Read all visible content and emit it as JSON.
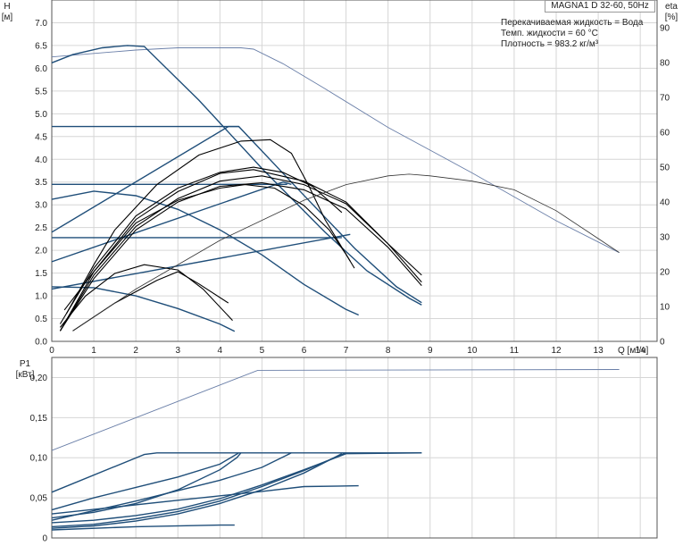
{
  "title": "MAGNA1 D 32-60, 50Hz",
  "info_lines": [
    "Перекачиваемая жидкость = Вода",
    "Темп. жидкости = 60 °C",
    "Плотность = 983.2 кг/м³"
  ],
  "colors": {
    "pump_curve": "#1f4e79",
    "efficiency_curve": "#000000",
    "outline": "#6a7fa8"
  },
  "chart_data": [
    {
      "type": "line",
      "panel": "H-Q",
      "xlabel": "Q [м³/ч]",
      "ylabel": "H\n[м]",
      "y2label": "eta\n[%]",
      "xlim": [
        0,
        14.4
      ],
      "ylim": [
        0,
        7.5
      ],
      "y2lim": [
        0,
        98
      ],
      "x_ticks": [
        "0",
        "1",
        "2",
        "3",
        "4",
        "5",
        "6",
        "7",
        "8",
        "9",
        "10",
        "11",
        "12",
        "13",
        "14"
      ],
      "y_ticks": [
        "0.0",
        "0.5",
        "1.0",
        "1.5",
        "2.0",
        "2.5",
        "3.0",
        "3.5",
        "4.0",
        "4.5",
        "5.0",
        "5.5",
        "6.0",
        "6.5",
        "7.0"
      ],
      "y2_ticks": [
        "0",
        "10",
        "20",
        "30",
        "40",
        "50",
        "60",
        "70",
        "80",
        "90"
      ],
      "series": [
        {
          "role": "head-max-twin",
          "axis": "H",
          "points": [
            [
              0,
              6.25
            ],
            [
              2,
              6.4
            ],
            [
              3,
              6.45
            ],
            [
              4.5,
              6.45
            ],
            [
              4.8,
              6.42
            ],
            [
              5.5,
              6.1
            ],
            [
              6.5,
              5.55
            ],
            [
              8,
              4.7
            ],
            [
              10,
              3.7
            ],
            [
              12,
              2.65
            ],
            [
              13.5,
              1.95
            ]
          ]
        },
        {
          "role": "head-max-single",
          "axis": "H",
          "points": [
            [
              0,
              6.12
            ],
            [
              0.5,
              6.3
            ],
            [
              1.2,
              6.45
            ],
            [
              1.8,
              6.5
            ],
            [
              2.2,
              6.48
            ],
            [
              3.5,
              5.3
            ],
            [
              5,
              3.8
            ],
            [
              6.5,
              2.4
            ],
            [
              7.5,
              1.55
            ],
            [
              8.5,
              0.95
            ],
            [
              8.8,
              0.8
            ]
          ]
        },
        {
          "role": "const-pressure-4.7",
          "axis": "H",
          "points": [
            [
              0,
              4.72
            ],
            [
              4.45,
              4.72
            ],
            [
              5.8,
              3.4
            ],
            [
              7.2,
              2.05
            ],
            [
              8.2,
              1.2
            ],
            [
              8.8,
              0.85
            ]
          ]
        },
        {
          "role": "const-pressure-3.45",
          "axis": "H",
          "points": [
            [
              0,
              3.45
            ],
            [
              5.6,
              3.45
            ]
          ]
        },
        {
          "role": "const-pressure-2.28",
          "axis": "H",
          "points": [
            [
              0,
              2.28
            ],
            [
              6.9,
              2.28
            ]
          ]
        },
        {
          "role": "prop-pressure-high",
          "axis": "H",
          "points": [
            [
              0,
              2.4
            ],
            [
              4.2,
              4.72
            ],
            [
              4.45,
              4.72
            ]
          ]
        },
        {
          "role": "prop-pressure-mid",
          "axis": "H",
          "points": [
            [
              0,
              1.75
            ],
            [
              5.5,
              3.5
            ],
            [
              5.7,
              3.45
            ]
          ]
        },
        {
          "role": "prop-pressure-low",
          "axis": "H",
          "points": [
            [
              0,
              1.15
            ],
            [
              7.1,
              2.35
            ]
          ]
        },
        {
          "role": "curve-3.1",
          "axis": "H",
          "points": [
            [
              0,
              3.12
            ],
            [
              1,
              3.3
            ],
            [
              2,
              3.2
            ],
            [
              3,
              2.9
            ],
            [
              4,
              2.45
            ],
            [
              5,
              1.9
            ],
            [
              6,
              1.25
            ],
            [
              7,
              0.7
            ],
            [
              7.3,
              0.58
            ]
          ]
        },
        {
          "role": "curve-1.2",
          "axis": "H",
          "points": [
            [
              0,
              1.2
            ],
            [
              1,
              1.18
            ],
            [
              2,
              1.0
            ],
            [
              3,
              0.72
            ],
            [
              4,
              0.38
            ],
            [
              4.35,
              0.22
            ]
          ]
        },
        {
          "role": "eta-1",
          "axis": "eta",
          "points": [
            [
              0.3,
              9
            ],
            [
              1,
              20
            ],
            [
              2,
              34
            ],
            [
              3,
              40.5
            ],
            [
              4,
              44
            ],
            [
              4.6,
              45
            ],
            [
              5.3,
              44
            ],
            [
              6,
              39
            ],
            [
              6.6,
              32
            ],
            [
              7,
              25
            ],
            [
              7.2,
              21
            ]
          ]
        },
        {
          "role": "eta-2",
          "axis": "eta",
          "points": [
            [
              0.2,
              5
            ],
            [
              1,
              21
            ],
            [
              2,
              36
            ],
            [
              3,
              44
            ],
            [
              4,
              48.5
            ],
            [
              4.8,
              50
            ],
            [
              5.5,
              48.5
            ],
            [
              6.2,
              44.5
            ],
            [
              6.9,
              37
            ]
          ]
        },
        {
          "role": "eta-3",
          "axis": "eta",
          "points": [
            [
              0.2,
              3
            ],
            [
              1,
              20
            ],
            [
              2,
              35
            ],
            [
              3,
              43
            ],
            [
              4,
              48.2
            ],
            [
              4.8,
              49.3
            ],
            [
              6,
              46
            ],
            [
              7,
              40
            ],
            [
              8,
              28
            ],
            [
              8.8,
              19
            ]
          ]
        },
        {
          "role": "eta-4",
          "axis": "eta",
          "points": [
            [
              0.2,
              3
            ],
            [
              1,
              19
            ],
            [
              2,
              33
            ],
            [
              3,
              41
            ],
            [
              4,
              46
            ],
            [
              5,
              47.5
            ],
            [
              6,
              45
            ],
            [
              7,
              39.5
            ],
            [
              8,
              28
            ],
            [
              8.8,
              17
            ]
          ]
        },
        {
          "role": "eta-5",
          "axis": "eta",
          "points": [
            [
              0.2,
              3
            ],
            [
              1,
              18
            ],
            [
              2,
              32
            ],
            [
              3,
              40
            ],
            [
              4,
              44.5
            ],
            [
              5,
              45.5
            ],
            [
              6,
              43.5
            ],
            [
              7,
              38
            ],
            [
              8,
              27
            ],
            [
              8.8,
              16
            ]
          ]
        },
        {
          "role": "eta-high",
          "axis": "eta",
          "points": [
            [
              0.35,
              8
            ],
            [
              1,
              22
            ],
            [
              1.5,
              32
            ],
            [
              2.5,
              45
            ],
            [
              3.5,
              53.5
            ],
            [
              4.5,
              57.5
            ],
            [
              5.2,
              57.9
            ],
            [
              5.7,
              54
            ],
            [
              6.1,
              45
            ],
            [
              6.5,
              35
            ],
            [
              7.1,
              23
            ]
          ]
        },
        {
          "role": "eta-small-1",
          "axis": "eta",
          "points": [
            [
              0.2,
              4
            ],
            [
              0.8,
              13
            ],
            [
              1.5,
              19.5
            ],
            [
              2.2,
              22
            ],
            [
              3,
              20.5
            ],
            [
              3.6,
              15
            ],
            [
              4.3,
              6
            ]
          ]
        },
        {
          "role": "eta-small-2",
          "axis": "eta",
          "points": [
            [
              0.5,
              3
            ],
            [
              1.5,
              11
            ],
            [
              2.5,
              17.5
            ],
            [
              3,
              20
            ],
            [
              3.5,
              16.5
            ],
            [
              4.2,
              11
            ]
          ]
        },
        {
          "role": "eta-max",
          "axis": "eta",
          "points": [
            [
              0.5,
              3
            ],
            [
              2,
              15
            ],
            [
              4,
              29
            ],
            [
              6,
              40.5
            ],
            [
              7,
              45
            ],
            [
              8,
              47.5
            ],
            [
              8.5,
              48
            ],
            [
              9,
              47.5
            ],
            [
              10,
              46
            ],
            [
              11,
              43.5
            ],
            [
              12,
              37.5
            ],
            [
              13,
              29.5
            ],
            [
              13.5,
              25.5
            ]
          ]
        }
      ]
    },
    {
      "type": "line",
      "panel": "P1-Q",
      "xlabel": "",
      "ylabel": "P1\n[кВт]",
      "xlim": [
        0,
        14.4
      ],
      "ylim": [
        0,
        0.225
      ],
      "y_ticks": [
        "0",
        "0,05",
        "0,10",
        "0,15",
        "0,20"
      ],
      "series": [
        {
          "role": "P1-max-twin",
          "points": [
            [
              0,
              0.109
            ],
            [
              4.9,
              0.209
            ],
            [
              13.5,
              0.21
            ]
          ]
        },
        {
          "role": "P1-max-single",
          "points": [
            [
              0,
              0.057
            ],
            [
              2.2,
              0.104
            ],
            [
              2.5,
              0.106
            ],
            [
              8.8,
              0.106
            ]
          ]
        },
        {
          "role": "P1-a",
          "points": [
            [
              0,
              0.035
            ],
            [
              1,
              0.05
            ],
            [
              2,
              0.063
            ],
            [
              3,
              0.076
            ],
            [
              4,
              0.092
            ],
            [
              4.45,
              0.106
            ]
          ]
        },
        {
          "role": "P1-b",
          "points": [
            [
              0,
              0.025
            ],
            [
              1,
              0.032
            ],
            [
              2,
              0.043
            ],
            [
              3,
              0.06
            ],
            [
              4,
              0.085
            ],
            [
              4.4,
              0.1
            ],
            [
              4.5,
              0.106
            ]
          ]
        },
        {
          "role": "P1-c",
          "points": [
            [
              0,
              0.022
            ],
            [
              2,
              0.046
            ],
            [
              4,
              0.072
            ],
            [
              5,
              0.088
            ],
            [
              5.7,
              0.106
            ]
          ]
        },
        {
          "role": "P1-d",
          "points": [
            [
              0,
              0.019
            ],
            [
              1,
              0.022
            ],
            [
              2,
              0.028
            ],
            [
              3,
              0.036
            ],
            [
              4,
              0.049
            ],
            [
              5,
              0.066
            ],
            [
              6,
              0.085
            ],
            [
              7,
              0.105
            ],
            [
              8.8,
              0.106
            ]
          ]
        },
        {
          "role": "P1-e",
          "points": [
            [
              0,
              0.014
            ],
            [
              1,
              0.017
            ],
            [
              2,
              0.024
            ],
            [
              3,
              0.033
            ],
            [
              4,
              0.046
            ],
            [
              5,
              0.064
            ],
            [
              6,
              0.084
            ],
            [
              7,
              0.106
            ]
          ]
        },
        {
          "role": "P1-f",
          "points": [
            [
              0,
              0.012
            ],
            [
              1,
              0.015
            ],
            [
              2,
              0.021
            ],
            [
              3,
              0.03
            ],
            [
              4,
              0.043
            ],
            [
              5,
              0.06
            ],
            [
              6,
              0.081
            ],
            [
              6.9,
              0.105
            ]
          ]
        },
        {
          "role": "P1-g",
          "points": [
            [
              0,
              0.03
            ],
            [
              3,
              0.047
            ],
            [
              5,
              0.058
            ],
            [
              6,
              0.064
            ],
            [
              7.3,
              0.065
            ]
          ]
        },
        {
          "role": "P1-small",
          "points": [
            [
              0,
              0.01
            ],
            [
              2,
              0.014
            ],
            [
              4,
              0.016
            ],
            [
              4.35,
              0.016
            ]
          ]
        }
      ]
    }
  ]
}
